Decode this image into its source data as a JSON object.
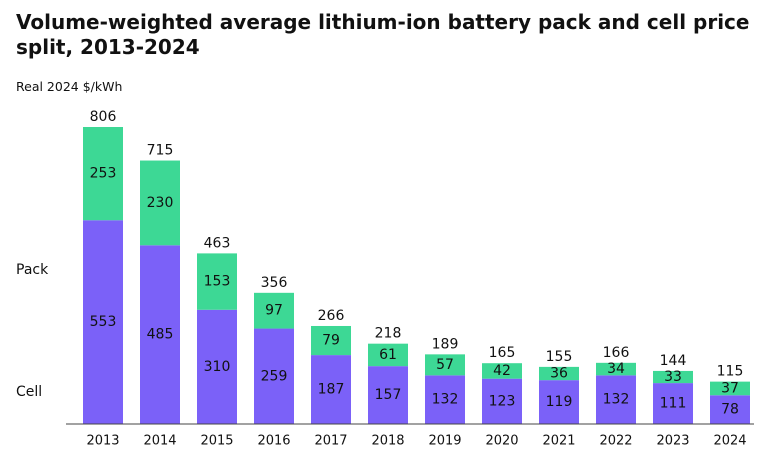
{
  "chart_data": {
    "type": "bar",
    "stacked": true,
    "title": "Volume-weighted average lithium-ion battery pack and cell price split, 2013-2024",
    "ylabel": "Real 2024 $/kWh",
    "xlabel": "",
    "ylim": [
      0,
      806
    ],
    "grid": false,
    "categories": [
      "2013",
      "2014",
      "2015",
      "2016",
      "2017",
      "2018",
      "2019",
      "2020",
      "2021",
      "2022",
      "2023",
      "2024"
    ],
    "series": [
      {
        "name": "Cell",
        "color": "#7b61f8",
        "values": [
          553,
          485,
          310,
          259,
          187,
          157,
          132,
          123,
          119,
          132,
          111,
          78
        ]
      },
      {
        "name": "Pack",
        "color": "#3dd895",
        "values": [
          253,
          230,
          153,
          97,
          79,
          61,
          57,
          42,
          36,
          34,
          33,
          37
        ]
      }
    ],
    "totals": [
      806,
      715,
      463,
      356,
      266,
      218,
      189,
      165,
      155,
      166,
      144,
      115
    ],
    "legend": {
      "position": "left",
      "labels": [
        "Pack",
        "Cell"
      ]
    }
  }
}
